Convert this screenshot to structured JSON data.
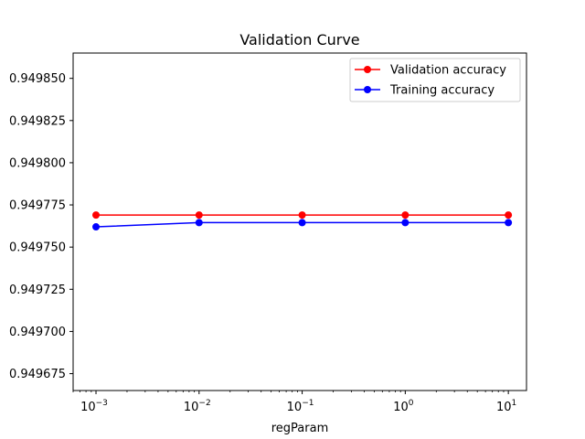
{
  "chart_data": {
    "type": "line",
    "title": "Validation Curve",
    "xlabel": "regParam",
    "ylabel": "",
    "xscale": "log",
    "x": [
      0.001,
      0.01,
      0.1,
      1,
      10
    ],
    "xlim": [
      0.0006,
      15
    ],
    "ylim": [
      0.949665,
      0.949865
    ],
    "x_ticks": [
      {
        "value": 0.001,
        "base": "10",
        "exp": "−3"
      },
      {
        "value": 0.01,
        "base": "10",
        "exp": "−2"
      },
      {
        "value": 0.1,
        "base": "10",
        "exp": "−1"
      },
      {
        "value": 1,
        "base": "10",
        "exp": "0"
      },
      {
        "value": 10,
        "base": "10",
        "exp": "1"
      }
    ],
    "y_ticks": [
      {
        "value": 0.949675,
        "label": "0.949675"
      },
      {
        "value": 0.9497,
        "label": "0.949700"
      },
      {
        "value": 0.949725,
        "label": "0.949725"
      },
      {
        "value": 0.94975,
        "label": "0.949750"
      },
      {
        "value": 0.949775,
        "label": "0.949775"
      },
      {
        "value": 0.9498,
        "label": "0.949800"
      },
      {
        "value": 0.949825,
        "label": "0.949825"
      },
      {
        "value": 0.94985,
        "label": "0.949850"
      }
    ],
    "series": [
      {
        "name": "Validation accuracy",
        "color": "#ff0000",
        "marker": "circle",
        "values": [
          0.949769,
          0.949769,
          0.949769,
          0.949769,
          0.949769
        ]
      },
      {
        "name": "Training accuracy",
        "color": "#0000ff",
        "marker": "circle",
        "values": [
          0.949762,
          0.9497645,
          0.9497645,
          0.9497645,
          0.9497645
        ]
      }
    ],
    "grid": false,
    "legend_position": "top-right"
  }
}
